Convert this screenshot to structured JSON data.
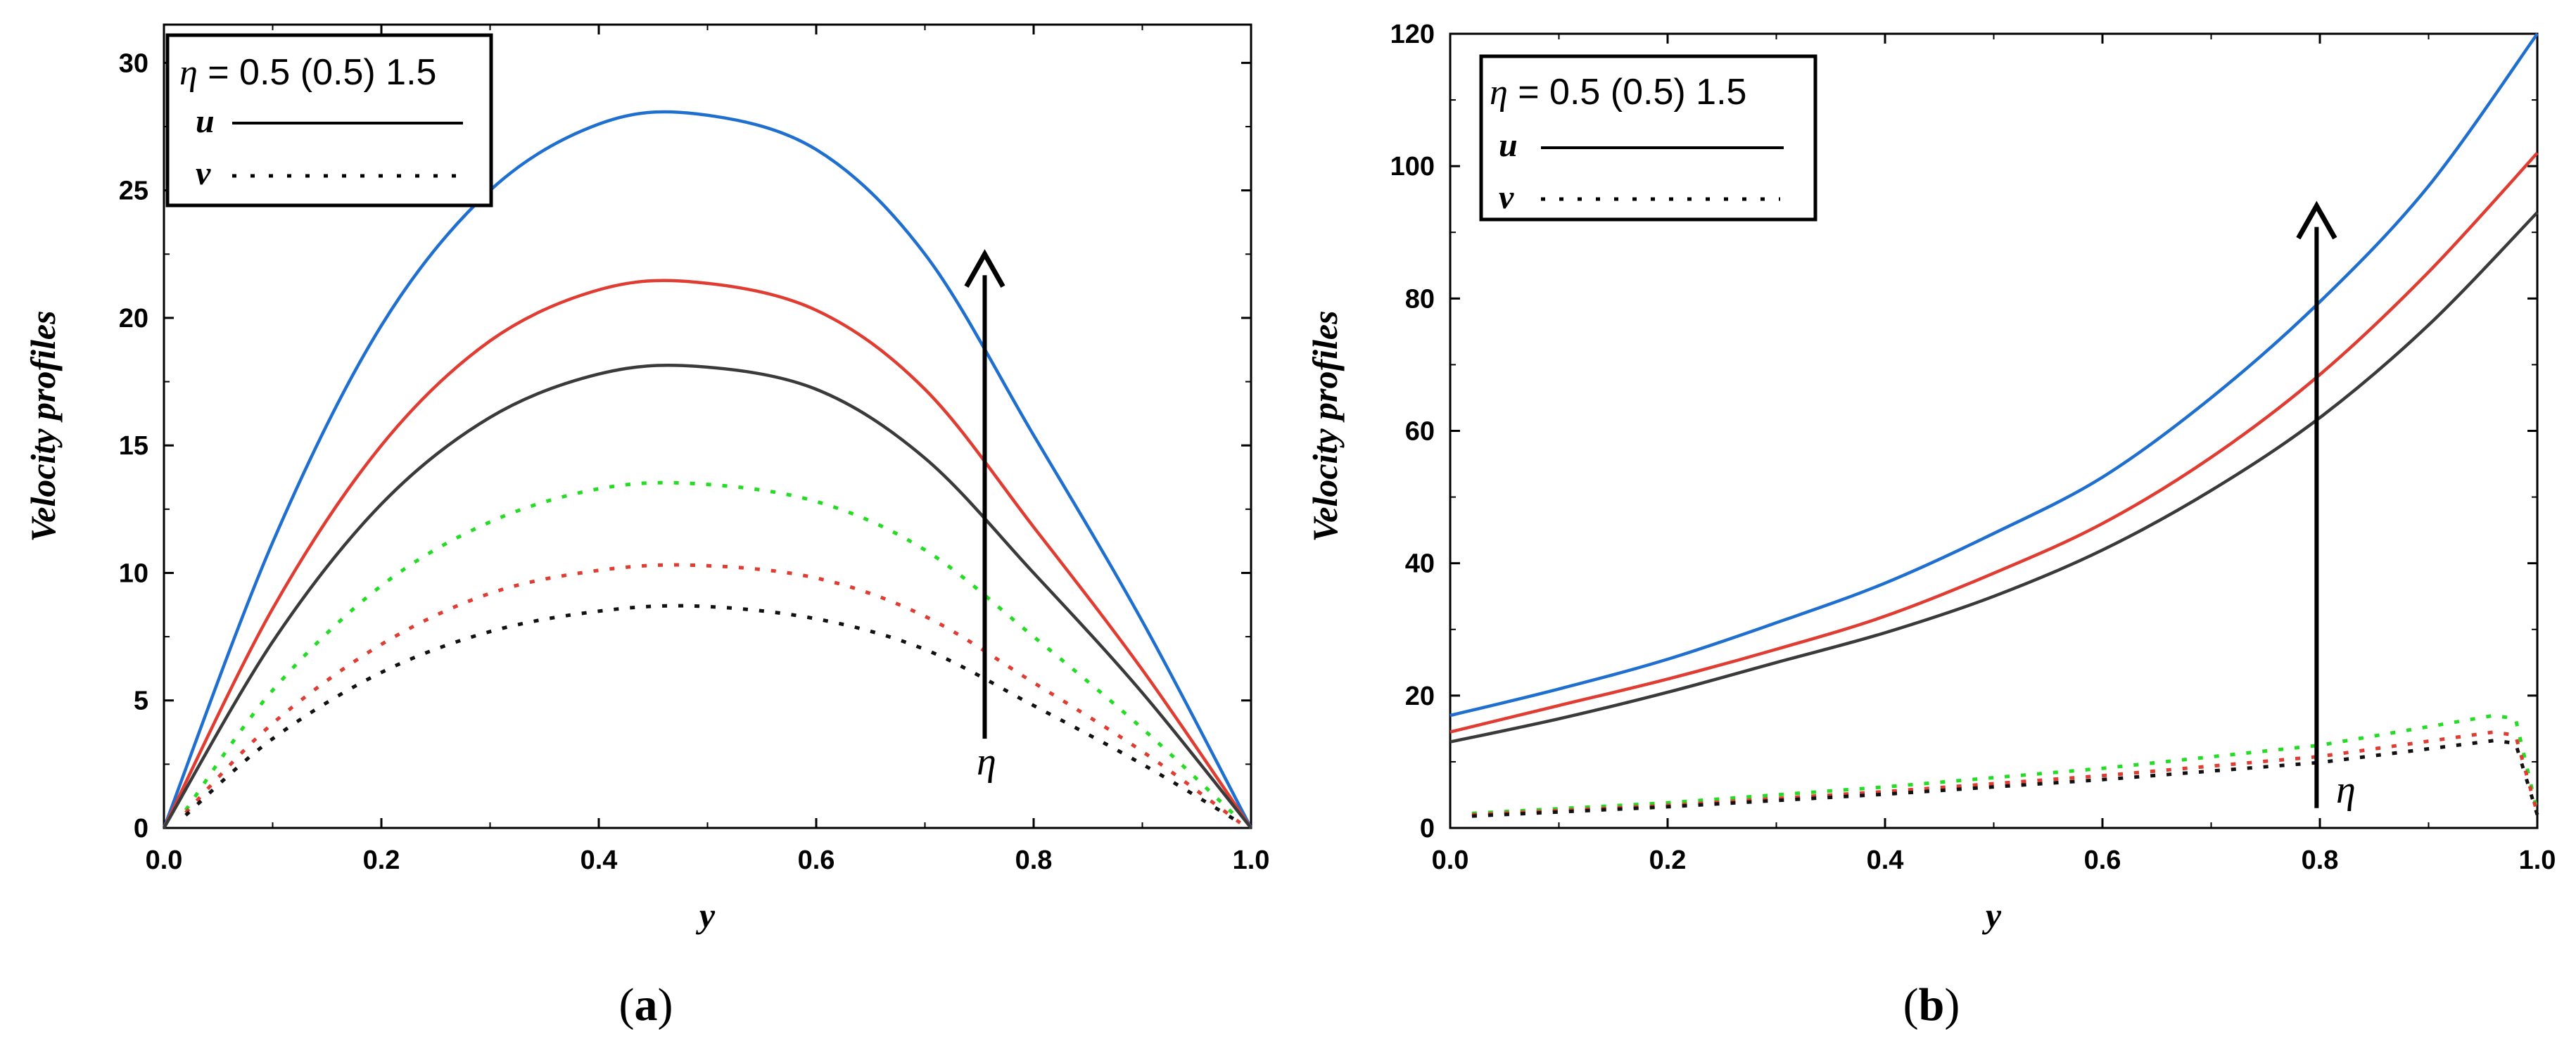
{
  "chart_data": [
    {
      "type": "line",
      "panel": "a",
      "panel_label": "a",
      "xlabel": "y",
      "ylabel": "Velocity profiles",
      "xlim": [
        0,
        1
      ],
      "ylim": [
        0,
        31.5
      ],
      "xticks": [
        "0.0",
        "0.2",
        "0.4",
        "0.6",
        "0.8",
        "1.0"
      ],
      "xtick_values": [
        0,
        0.2,
        0.4,
        0.6,
        0.8,
        1.0
      ],
      "yticks": [
        "0",
        "5",
        "10",
        "15",
        "20",
        "25",
        "30"
      ],
      "ytick_values": [
        0,
        5,
        10,
        15,
        20,
        25,
        30
      ],
      "legend": {
        "eta": "η",
        "title": " = 0.5 (0.5) 1.5",
        "entries": [
          {
            "label": "u",
            "style": "solid"
          },
          {
            "label": "v",
            "style": "dotted"
          }
        ]
      },
      "arrow_label": "η",
      "arrow": {
        "x": 0.755,
        "y_from": 3.5,
        "y_to": 22.5
      },
      "series": [
        {
          "name": "u (η=1.5)",
          "color": "#1f6fd0",
          "style": "solid",
          "x": [
            0,
            0.1,
            0.2,
            0.3,
            0.4,
            0.49,
            0.6,
            0.7,
            0.8,
            0.9,
            1.0
          ],
          "y": [
            0,
            11.2,
            19.7,
            25.0,
            27.6,
            28.0,
            26.6,
            22.5,
            15.4,
            8.1,
            0
          ]
        },
        {
          "name": "u (η=1.0)",
          "color": "#e03c31",
          "style": "solid",
          "x": [
            0,
            0.1,
            0.2,
            0.3,
            0.4,
            0.49,
            0.6,
            0.7,
            0.8,
            0.9,
            1.0
          ],
          "y": [
            0,
            8.6,
            15.0,
            19.1,
            21.1,
            21.4,
            20.3,
            17.2,
            11.8,
            6.2,
            0
          ]
        },
        {
          "name": "u (η=0.5)",
          "color": "#3a3a3a",
          "style": "solid",
          "x": [
            0,
            0.1,
            0.2,
            0.3,
            0.4,
            0.49,
            0.6,
            0.7,
            0.8,
            0.9,
            1.0
          ],
          "y": [
            0,
            7.3,
            12.7,
            16.1,
            17.8,
            18.1,
            17.2,
            14.5,
            10.0,
            5.3,
            0
          ]
        },
        {
          "name": "v (η=1.5)",
          "color": "#22dd22",
          "style": "dotted",
          "x": [
            0.02,
            0.1,
            0.2,
            0.3,
            0.4,
            0.49,
            0.6,
            0.7,
            0.8,
            0.9,
            0.99
          ],
          "y": [
            0.7,
            5.4,
            9.5,
            12.0,
            13.3,
            13.5,
            12.8,
            10.9,
            7.5,
            3.9,
            0.3
          ]
        },
        {
          "name": "v (η=1.0)",
          "color": "#e03c31",
          "style": "dotted",
          "x": [
            0.02,
            0.1,
            0.2,
            0.3,
            0.4,
            0.49,
            0.6,
            0.7,
            0.8,
            0.9,
            0.99
          ],
          "y": [
            0.6,
            4.1,
            7.2,
            9.2,
            10.1,
            10.3,
            9.8,
            8.3,
            5.7,
            3.0,
            0.2
          ]
        },
        {
          "name": "v (η=0.5)",
          "color": "#111111",
          "style": "dotted",
          "x": [
            0.02,
            0.1,
            0.2,
            0.3,
            0.4,
            0.49,
            0.6,
            0.7,
            0.8,
            0.9,
            0.99
          ],
          "y": [
            0.5,
            3.5,
            6.1,
            7.7,
            8.5,
            8.7,
            8.2,
            7.0,
            4.8,
            2.5,
            0.2
          ]
        }
      ]
    },
    {
      "type": "line",
      "panel": "b",
      "panel_label": "b",
      "xlabel": "y",
      "ylabel": "Velocity profiles",
      "xlim": [
        0,
        1
      ],
      "ylim": [
        0,
        120
      ],
      "xticks": [
        "0.0",
        "0.2",
        "0.4",
        "0.6",
        "0.8",
        "1.0"
      ],
      "xtick_values": [
        0,
        0.2,
        0.4,
        0.6,
        0.8,
        1.0
      ],
      "yticks": [
        "0",
        "20",
        "40",
        "60",
        "80",
        "100",
        "120"
      ],
      "ytick_values": [
        0,
        20,
        40,
        60,
        80,
        100,
        120
      ],
      "legend": {
        "eta": "η",
        "title": " = 0.5 (0.5) 1.5",
        "entries": [
          {
            "label": "u",
            "style": "solid"
          },
          {
            "label": "v",
            "style": "dotted"
          }
        ]
      },
      "arrow_label": "η",
      "arrow": {
        "x": 0.797,
        "y_from": 3,
        "y_to": 94
      },
      "series": [
        {
          "name": "u (η=1.5)",
          "color": "#1f6fd0",
          "style": "solid",
          "x": [
            0,
            0.1,
            0.2,
            0.3,
            0.4,
            0.5,
            0.6,
            0.7,
            0.8,
            0.9,
            1.0
          ],
          "y": [
            17,
            21,
            25.5,
            31,
            37,
            44.5,
            53,
            65,
            79.5,
            97,
            120
          ]
        },
        {
          "name": "u (η=1.0)",
          "color": "#e03c31",
          "style": "solid",
          "x": [
            0,
            0.1,
            0.2,
            0.3,
            0.4,
            0.5,
            0.6,
            0.7,
            0.8,
            0.9,
            1.0
          ],
          "y": [
            14.5,
            18.5,
            22.5,
            27,
            32,
            38.5,
            46,
            56,
            68.5,
            84,
            102
          ]
        },
        {
          "name": "u (η=0.5)",
          "color": "#3a3a3a",
          "style": "solid",
          "x": [
            0,
            0.1,
            0.2,
            0.3,
            0.4,
            0.5,
            0.6,
            0.7,
            0.8,
            0.9,
            1.0
          ],
          "y": [
            13,
            16.5,
            20.5,
            25,
            29.5,
            35,
            42,
            51,
            62,
            76,
            93
          ]
        },
        {
          "name": "v (η=1.5)",
          "color": "#22dd22",
          "style": "dotted",
          "x": [
            0.02,
            0.2,
            0.4,
            0.6,
            0.8,
            0.96,
            0.98,
            1.0
          ],
          "y": [
            2.2,
            3.8,
            6.2,
            9.0,
            12.5,
            17.0,
            16.5,
            2.5
          ]
        },
        {
          "name": "v (η=1.0)",
          "color": "#e03c31",
          "style": "dotted",
          "x": [
            0.02,
            0.2,
            0.4,
            0.6,
            0.8,
            0.96,
            0.98,
            1.0
          ],
          "y": [
            2.0,
            3.4,
            5.5,
            7.9,
            10.8,
            14.5,
            14.0,
            2.2
          ]
        },
        {
          "name": "v (η=0.5)",
          "color": "#111111",
          "style": "dotted",
          "x": [
            0.02,
            0.2,
            0.4,
            0.6,
            0.8,
            0.96,
            0.98,
            1.0
          ],
          "y": [
            1.8,
            3.2,
            5.1,
            7.3,
            9.9,
            13.2,
            12.8,
            2.0
          ]
        }
      ]
    }
  ]
}
